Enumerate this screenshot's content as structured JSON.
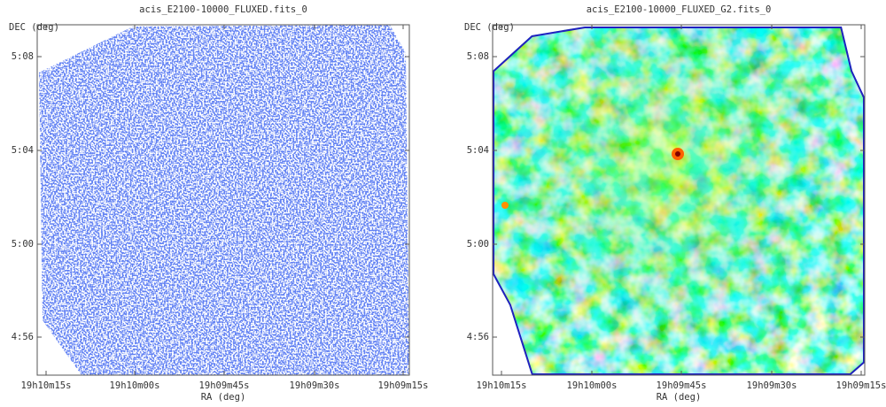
{
  "panels": [
    {
      "title": "acis_E2100-10000_FLUXED.fits_0",
      "y_label": "DEC (deg)",
      "x_label": "RA (deg)",
      "xticks": [
        "19h10m15s",
        "19h10m00s",
        "19h09m45s",
        "19h09m30s",
        "19h09m15s"
      ],
      "yticks": [
        "5:08",
        "5:04",
        "5:00",
        "4:56"
      ]
    },
    {
      "title": "acis_E2100-10000_FLUXED_G2.fits_0",
      "y_label": "DEC (deg)",
      "x_label": "RA (deg)",
      "xticks": [
        "19h10m15s",
        "19h10m00s",
        "19h09m45s",
        "19h09m30s",
        "19h09m15s"
      ],
      "yticks": [
        "5:08",
        "5:04",
        "5:00",
        "4:56"
      ]
    }
  ]
}
